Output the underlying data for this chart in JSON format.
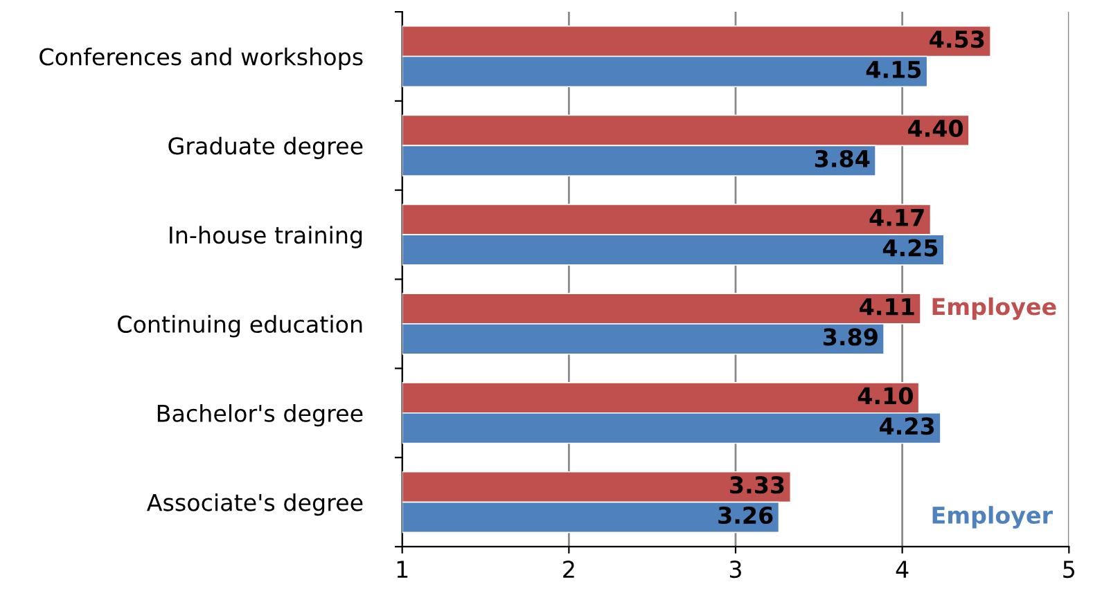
{
  "chart_data": {
    "type": "bar",
    "orientation": "horizontal",
    "categories": [
      "Conferences and workshops",
      "Graduate degree",
      "In-house training",
      "Continuing education",
      "Bachelor's degree",
      "Associate's degree"
    ],
    "series": [
      {
        "name": "Employee",
        "color": "#c0504d",
        "values": [
          4.53,
          4.4,
          4.17,
          4.11,
          4.1,
          3.33
        ],
        "value_labels": [
          "4.53",
          "4.40",
          "4.17",
          "4.11",
          "4.10",
          "3.33"
        ]
      },
      {
        "name": "Employer",
        "color": "#4f81bd",
        "values": [
          4.15,
          3.84,
          4.25,
          3.89,
          4.23,
          3.26
        ],
        "value_labels": [
          "4.15",
          "3.84",
          "4.25",
          "3.89",
          "4.23",
          "3.26"
        ]
      }
    ],
    "xlim": [
      1,
      5
    ],
    "xticks": [
      1,
      2,
      3,
      4,
      5
    ],
    "grid": "x"
  }
}
